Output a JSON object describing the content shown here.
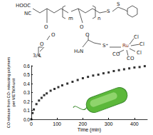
{
  "chart_data": {
    "type": "scatter",
    "x_label": "Time (min)",
    "y_label": "CO release from CO- releasing polymers\nper METMA unit",
    "x": [
      0,
      5,
      10,
      20,
      30,
      40,
      50,
      60,
      75,
      90,
      105,
      120,
      140,
      160,
      180,
      200,
      220,
      240,
      260,
      280,
      300,
      320,
      340,
      360,
      380,
      400,
      420,
      440
    ],
    "values": [
      0,
      0.07,
      0.11,
      0.17,
      0.21,
      0.24,
      0.27,
      0.29,
      0.32,
      0.34,
      0.36,
      0.38,
      0.4,
      0.42,
      0.44,
      0.46,
      0.475,
      0.49,
      0.5,
      0.515,
      0.525,
      0.54,
      0.55,
      0.56,
      0.57,
      0.58,
      0.585,
      0.595
    ],
    "color": "#000000",
    "marker": "square",
    "xlim": [
      0,
      450
    ],
    "xticks": [
      0,
      100,
      200,
      300,
      400
    ],
    "ylim": [
      0,
      0.6
    ],
    "yticks": [
      {
        "value": 0,
        "label": "0.0"
      },
      0.1,
      0.2,
      0.3,
      0.4,
      0.5,
      0.6
    ],
    "grid": false
  },
  "structure": {
    "labels": [
      "HOOC",
      "NC",
      "m",
      "n",
      "O",
      "O",
      "O",
      "3/4",
      "S",
      "S",
      "O",
      "O",
      "H₂N",
      "S⁺",
      "Ru",
      "Cl",
      "Cl",
      "Cl",
      "CO",
      "CO"
    ]
  }
}
